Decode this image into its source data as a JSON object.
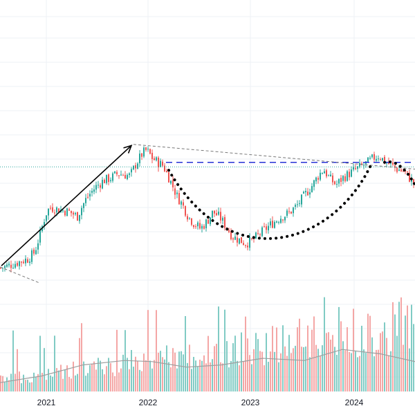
{
  "chart_data": {
    "type": "candlestick",
    "x_axis": {
      "tick_labels": [
        "2021",
        "2022",
        "2023",
        "2024"
      ]
    },
    "price_range_visible": [
      0,
      100
    ],
    "colors": {
      "up": "#26a69a",
      "down": "#ef5350",
      "up_volume": "#80cbc4",
      "down_volume": "#f4a6a5",
      "grid": "#eef1f5",
      "volume_ma": "#9e9e9e",
      "horizontal_level": "#26a69a",
      "resistance": "#2430d6",
      "trendline": "#777777",
      "pattern_curve": "#000000",
      "arrow": "#000000"
    },
    "price_path": [
      [
        0,
        10
      ],
      [
        12,
        12
      ],
      [
        25,
        15
      ],
      [
        40,
        18
      ],
      [
        50,
        24
      ],
      [
        58,
        40
      ],
      [
        66,
        58
      ],
      [
        72,
        64
      ],
      [
        85,
        62
      ],
      [
        100,
        60
      ],
      [
        112,
        56
      ],
      [
        118,
        64
      ],
      [
        125,
        72
      ],
      [
        130,
        76
      ],
      [
        138,
        82
      ],
      [
        150,
        88
      ],
      [
        160,
        90
      ],
      [
        170,
        94
      ],
      [
        180,
        93
      ],
      [
        188,
        92
      ],
      [
        196,
        102
      ],
      [
        201,
        107
      ],
      [
        206,
        112
      ],
      [
        212,
        115
      ],
      [
        220,
        108
      ],
      [
        228,
        104
      ],
      [
        236,
        101
      ],
      [
        246,
        88
      ],
      [
        256,
        74
      ],
      [
        264,
        66
      ],
      [
        272,
        56
      ],
      [
        280,
        50
      ],
      [
        290,
        45
      ],
      [
        300,
        52
      ],
      [
        308,
        60
      ],
      [
        318,
        55
      ],
      [
        328,
        46
      ],
      [
        336,
        38
      ],
      [
        346,
        35
      ],
      [
        355,
        32
      ],
      [
        364,
        34
      ],
      [
        375,
        40
      ],
      [
        390,
        48
      ],
      [
        405,
        55
      ],
      [
        418,
        59
      ],
      [
        430,
        66
      ],
      [
        442,
        76
      ],
      [
        452,
        84
      ],
      [
        460,
        92
      ],
      [
        468,
        98
      ],
      [
        476,
        90
      ],
      [
        486,
        84
      ],
      [
        495,
        90
      ],
      [
        505,
        94
      ],
      [
        515,
        98
      ],
      [
        524,
        101
      ],
      [
        532,
        104
      ],
      [
        540,
        108
      ],
      [
        548,
        110
      ],
      [
        556,
        105
      ],
      [
        564,
        102
      ],
      [
        574,
        98
      ],
      [
        584,
        96
      ],
      [
        592,
        90
      ],
      [
        600,
        84
      ]
    ],
    "volume_seed": 7,
    "annotations": {
      "horizontal_level_price": 100,
      "resistance_price": 104,
      "resistance_x_range": [
        240,
        600
      ],
      "descending_trendline": [
        [
          193,
          120
        ],
        [
          600,
          98
        ]
      ],
      "support_trendline": [
        [
          0,
          11
        ],
        [
          56,
          -3
        ]
      ],
      "rally_arrow": [
        [
          2,
          12
        ],
        [
          190,
          119
        ]
      ],
      "cup_curve": [
        [
          244,
          97
        ],
        [
          335,
          34
        ],
        [
          485,
          50
        ],
        [
          538,
          104
        ]
      ],
      "right_curve": [
        [
          556,
          104
        ],
        [
          600,
          84
        ]
      ]
    },
    "volume_ma": [
      [
        0,
        8
      ],
      [
        60,
        14
      ],
      [
        120,
        24
      ],
      [
        180,
        28
      ],
      [
        220,
        27
      ],
      [
        270,
        22
      ],
      [
        320,
        24
      ],
      [
        380,
        30
      ],
      [
        440,
        28
      ],
      [
        495,
        38
      ],
      [
        550,
        34
      ],
      [
        600,
        27
      ]
    ]
  }
}
